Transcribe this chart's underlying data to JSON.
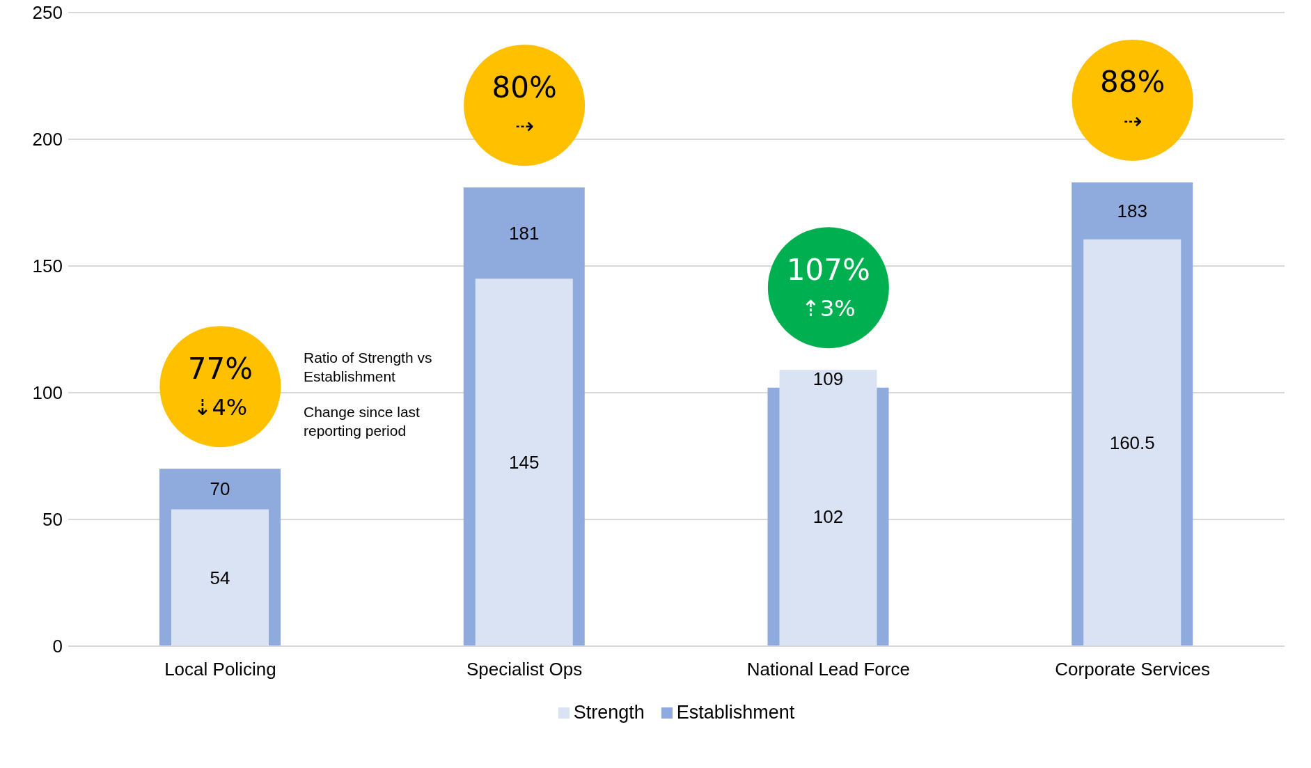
{
  "chart_data": {
    "type": "bar",
    "categories": [
      "Local Policing",
      "Specialist Ops",
      "National Lead Force",
      "Corporate Services"
    ],
    "series": [
      {
        "name": "Strength",
        "color": "#dae3f3",
        "values": [
          54,
          145,
          109,
          160.5
        ]
      },
      {
        "name": "Establishment",
        "color": "#8faadc",
        "values": [
          70,
          181,
          102,
          183
        ]
      }
    ],
    "ylim": [
      0,
      250
    ],
    "yticks": [
      0,
      50,
      100,
      150,
      200,
      250
    ],
    "grid": "y",
    "legend": "bottom",
    "data_labels": true,
    "annotations": [
      "77%",
      "⇣4%",
      "80%",
      "⇢",
      "107%",
      "⇡3%",
      "88%",
      "⇢",
      "Ratio of Strength vs Establishment",
      "Change since last reporting period"
    ]
  }
}
